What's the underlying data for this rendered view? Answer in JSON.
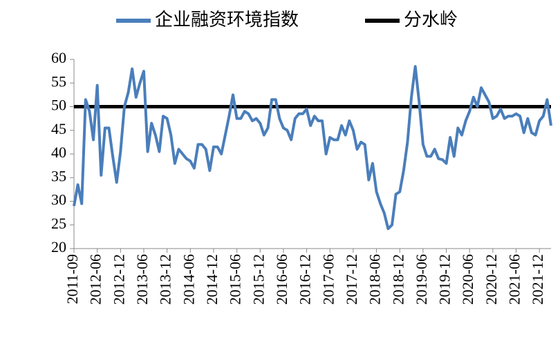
{
  "chart_data": {
    "type": "line",
    "categories": [
      "2011-09",
      null,
      null,
      null,
      null,
      null,
      "2012-06",
      null,
      null,
      null,
      null,
      null,
      "2012-12",
      null,
      null,
      null,
      null,
      null,
      "2013-06",
      null,
      null,
      null,
      null,
      null,
      "2013-12",
      null,
      null,
      null,
      null,
      null,
      "2014-06",
      null,
      null,
      null,
      null,
      null,
      "2014-12",
      null,
      null,
      null,
      null,
      null,
      "2015-06",
      null,
      null,
      null,
      null,
      null,
      "2015-12",
      null,
      null,
      null,
      null,
      null,
      "2016-06",
      null,
      null,
      null,
      null,
      null,
      "2016-12",
      null,
      null,
      null,
      null,
      null,
      "2017-06",
      null,
      null,
      null,
      null,
      null,
      "2017-12",
      null,
      null,
      null,
      null,
      null,
      "2018-06",
      null,
      null,
      null,
      null,
      null,
      "2018-12",
      null,
      null,
      null,
      null,
      null,
      "2019-06",
      null,
      null,
      null,
      null,
      null,
      "2019-12",
      null,
      null,
      null,
      null,
      null,
      "2020-06",
      null,
      null,
      null,
      null,
      null,
      "2020-12",
      null,
      null,
      null,
      null,
      null,
      "2021-06",
      null,
      null,
      null,
      null,
      null,
      "2021-12",
      null,
      null,
      null
    ],
    "series": [
      {
        "name": "企业融资环境指数",
        "color": "#4a7ebb",
        "values": [
          29,
          33.5,
          29.5,
          51.5,
          49,
          43,
          54.5,
          35.5,
          45.5,
          45.5,
          39.5,
          34,
          40.5,
          50,
          53,
          58,
          52,
          55,
          57.5,
          40.5,
          46.5,
          44,
          40.5,
          48,
          47.5,
          44,
          38,
          41,
          40,
          39,
          38.5,
          37,
          42,
          42,
          41,
          36.5,
          41.5,
          41.5,
          40,
          44,
          48,
          52.5,
          47.5,
          47.5,
          49,
          48.5,
          47,
          47.5,
          46.5,
          44,
          45.5,
          51.5,
          51.5,
          47.5,
          45.5,
          45,
          43,
          47.5,
          48.5,
          48.5,
          49.5,
          46,
          48,
          47,
          47,
          40,
          43.5,
          43,
          43,
          46,
          44,
          47,
          45,
          41,
          42.5,
          42,
          34.5,
          38,
          32,
          29.5,
          27.5,
          24.2,
          25,
          31.5,
          32,
          36.5,
          42.5,
          52,
          58.5,
          51,
          42,
          39.5,
          39.5,
          41,
          39,
          38.8,
          38,
          43.5,
          39.5,
          45.5,
          44,
          47,
          49,
          52,
          50,
          54,
          52.5,
          51,
          47.5,
          48,
          49.5,
          47.5,
          48,
          48,
          48.5,
          48,
          44.5,
          47.5,
          44.5,
          44,
          47,
          48,
          51.5,
          46
        ]
      }
    ],
    "reference_line": {
      "name": "分水岭",
      "color": "#000000",
      "value": 50
    },
    "ylim": [
      20,
      60
    ],
    "yticks": [
      20,
      25,
      30,
      35,
      40,
      45,
      50,
      55,
      60
    ]
  }
}
